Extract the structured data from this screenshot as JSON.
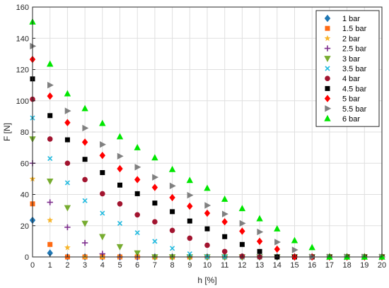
{
  "chart_data": {
    "type": "scatter",
    "title": "",
    "xlabel": "h [%]",
    "ylabel": "F [N]",
    "xlim": [
      0,
      20
    ],
    "ylim": [
      0,
      160
    ],
    "xticks": [
      0,
      1,
      2,
      3,
      4,
      5,
      6,
      7,
      8,
      9,
      10,
      11,
      12,
      13,
      14,
      15,
      16,
      17,
      18,
      19,
      20
    ],
    "yticks": [
      0,
      20,
      40,
      60,
      80,
      100,
      120,
      140,
      160
    ],
    "grid": true,
    "legend_position": "top-right",
    "series": [
      {
        "name": "1 bar",
        "marker": "diamond",
        "color": "#1f77b4",
        "x": [
          0,
          1,
          2,
          3,
          4,
          5,
          6,
          7,
          8,
          9,
          10,
          11,
          12,
          13,
          14,
          15,
          16,
          17,
          18,
          19,
          20
        ],
        "y": [
          23.5,
          2.5,
          0,
          0,
          0,
          0,
          0,
          0,
          0,
          0,
          0,
          0,
          0,
          0,
          0,
          0,
          0,
          0,
          0,
          0,
          0
        ]
      },
      {
        "name": "1.5 bar",
        "marker": "square",
        "color": "#ff6a13",
        "x": [
          0,
          1,
          2,
          3,
          4,
          5,
          6,
          7,
          8,
          9,
          10,
          11,
          12,
          13,
          14,
          15,
          16,
          17,
          18,
          19,
          20
        ],
        "y": [
          34,
          8,
          0,
          0,
          0,
          0,
          0,
          0,
          0,
          0,
          0,
          0,
          0,
          0,
          0,
          0,
          0,
          0,
          0,
          0,
          0
        ]
      },
      {
        "name": "2 bar",
        "marker": "star",
        "color": "#f7b52c",
        "x": [
          0,
          1,
          2,
          3,
          4,
          5,
          6,
          7,
          8,
          9,
          10,
          11,
          12,
          13,
          14,
          15,
          16,
          17,
          18,
          19,
          20
        ],
        "y": [
          50,
          23.5,
          6,
          0,
          0,
          0,
          0,
          0,
          0,
          0,
          0,
          0,
          0,
          0,
          0,
          0,
          0,
          0,
          0,
          0,
          0
        ]
      },
      {
        "name": "2.5 bar",
        "marker": "plus",
        "color": "#7e2f8e",
        "x": [
          0,
          1,
          2,
          3,
          4,
          5,
          6,
          7,
          8,
          9,
          10,
          11,
          12,
          13,
          14,
          15,
          16,
          17,
          18,
          19,
          20
        ],
        "y": [
          60,
          35,
          19,
          9,
          2,
          0,
          0,
          0,
          0,
          0,
          0,
          0,
          0,
          0,
          0,
          0,
          0,
          0,
          0,
          0,
          0
        ]
      },
      {
        "name": "3 bar",
        "marker": "triangle-down",
        "color": "#77ac30",
        "x": [
          0,
          1,
          2,
          3,
          4,
          5,
          6,
          7,
          8,
          9,
          10,
          11,
          12,
          13,
          14,
          15,
          16,
          17,
          18,
          19,
          20
        ],
        "y": [
          75.5,
          48.5,
          31.5,
          21.5,
          13,
          6.5,
          2.5,
          0,
          0,
          0,
          0,
          0,
          0,
          0,
          0,
          0,
          0,
          0,
          0,
          0,
          0
        ]
      },
      {
        "name": "3.5 bar",
        "marker": "x",
        "color": "#22bbe0",
        "x": [
          0,
          1,
          2,
          3,
          4,
          5,
          6,
          7,
          8,
          9,
          10,
          11,
          12,
          13,
          14,
          15,
          16,
          17,
          18,
          19,
          20
        ],
        "y": [
          89,
          63,
          47.5,
          36,
          28,
          21.5,
          15.5,
          10,
          5.5,
          2,
          0,
          0,
          0,
          0,
          0,
          0,
          0,
          0,
          0,
          0,
          0
        ]
      },
      {
        "name": "4 bar",
        "marker": "circle",
        "color": "#a2142f",
        "x": [
          0,
          1,
          2,
          3,
          4,
          5,
          6,
          7,
          8,
          9,
          10,
          11,
          12,
          13,
          14,
          15,
          16,
          17,
          18,
          19,
          20
        ],
        "y": [
          101,
          75.5,
          60,
          49.5,
          40.5,
          34,
          27,
          22.5,
          17,
          12,
          7.5,
          3.5,
          0.5,
          0,
          0,
          0,
          0,
          0,
          0,
          0,
          0
        ]
      },
      {
        "name": "4.5 bar",
        "marker": "square",
        "color": "#000000",
        "x": [
          0,
          1,
          2,
          3,
          4,
          5,
          6,
          7,
          8,
          9,
          10,
          11,
          12,
          13,
          14,
          15,
          16,
          17,
          18,
          19,
          20
        ],
        "y": [
          114,
          90.5,
          75,
          62.5,
          54,
          46,
          40.5,
          34.5,
          29,
          23,
          18,
          13,
          8,
          3.5,
          0,
          0,
          0,
          0,
          0,
          0,
          0
        ]
      },
      {
        "name": "5 bar",
        "marker": "diamond",
        "color": "#ff0000",
        "x": [
          0,
          1,
          2,
          3,
          4,
          5,
          6,
          7,
          8,
          9,
          10,
          11,
          12,
          13,
          14,
          15,
          16,
          17,
          18,
          19,
          20
        ],
        "y": [
          126.5,
          103,
          86,
          73.5,
          65,
          56.5,
          49.5,
          44.5,
          38,
          32.5,
          28,
          22.5,
          16.5,
          10,
          5,
          0,
          0,
          0,
          0,
          0,
          0
        ]
      },
      {
        "name": "5.5 bar",
        "marker": "triangle-right",
        "color": "#808080",
        "x": [
          0,
          1,
          2,
          3,
          4,
          5,
          6,
          7,
          8,
          9,
          10,
          11,
          12,
          13,
          14,
          15,
          16,
          17,
          18,
          19,
          20
        ],
        "y": [
          135,
          110,
          93.5,
          82.5,
          72,
          64.5,
          57.5,
          51,
          45.5,
          39.5,
          33,
          27.5,
          21.5,
          16,
          9.5,
          4.5,
          0,
          0,
          0,
          0,
          0
        ]
      },
      {
        "name": "6 bar",
        "marker": "triangle-up",
        "color": "#00e600",
        "x": [
          0,
          1,
          2,
          3,
          4,
          5,
          6,
          7,
          8,
          9,
          10,
          11,
          12,
          13,
          14,
          15,
          16,
          17,
          18,
          19,
          20
        ],
        "y": [
          150.5,
          123.5,
          104.5,
          95,
          85.5,
          77,
          70,
          63.5,
          56,
          49,
          44,
          37,
          31,
          24.5,
          18,
          10.5,
          6,
          0,
          0,
          0,
          0
        ]
      }
    ]
  }
}
